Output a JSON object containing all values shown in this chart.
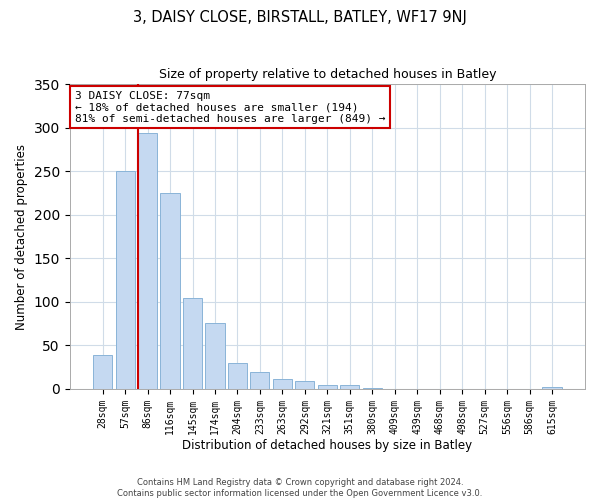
{
  "title": "3, DAISY CLOSE, BIRSTALL, BATLEY, WF17 9NJ",
  "subtitle": "Size of property relative to detached houses in Batley",
  "xlabel": "Distribution of detached houses by size in Batley",
  "ylabel": "Number of detached properties",
  "bar_labels": [
    "28sqm",
    "57sqm",
    "86sqm",
    "116sqm",
    "145sqm",
    "174sqm",
    "204sqm",
    "233sqm",
    "263sqm",
    "292sqm",
    "321sqm",
    "351sqm",
    "380sqm",
    "409sqm",
    "439sqm",
    "468sqm",
    "498sqm",
    "527sqm",
    "556sqm",
    "586sqm",
    "615sqm"
  ],
  "bar_values": [
    39,
    250,
    294,
    225,
    104,
    76,
    30,
    19,
    11,
    9,
    5,
    4,
    1,
    0,
    0,
    0,
    0,
    0,
    0,
    0,
    2
  ],
  "bar_color": "#c5d9f1",
  "bar_edge_color": "#8ab4d8",
  "vline_color": "#cc0000",
  "annotation_title": "3 DAISY CLOSE: 77sqm",
  "annotation_line1": "← 18% of detached houses are smaller (194)",
  "annotation_line2": "81% of semi-detached houses are larger (849) →",
  "annotation_box_color": "#ffffff",
  "annotation_box_edge": "#cc0000",
  "ylim": [
    0,
    350
  ],
  "yticks": [
    0,
    50,
    100,
    150,
    200,
    250,
    300,
    350
  ],
  "footer1": "Contains HM Land Registry data © Crown copyright and database right 2024.",
  "footer2": "Contains public sector information licensed under the Open Government Licence v3.0.",
  "background_color": "#ffffff",
  "grid_color": "#d0dce8"
}
